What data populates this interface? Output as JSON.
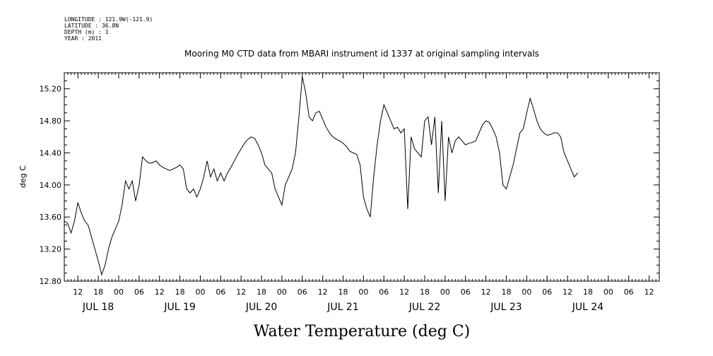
{
  "header": {
    "longitude": "LONGITUDE : 121.9W(-121.9)",
    "latitude": "LATITUDE : 36.8N",
    "depth": "DEPTH (m) : 1",
    "year": "YEAR : 2011"
  },
  "chart_data": {
    "type": "line",
    "title": "Mooring M0 CTD data from MBARI instrument id 1337 at original sampling intervals",
    "xlabel": "Water Temperature (deg C)",
    "ylabel": "deg C",
    "ylim": [
      12.8,
      15.4
    ],
    "xlim": [
      "2011-07-17T08:00",
      "2011-07-24T15:00"
    ],
    "yticks": [
      "12.80",
      "13.20",
      "13.60",
      "14.00",
      "14.40",
      "14.80",
      "15.20"
    ],
    "xticks": [
      {
        "t": "2011-07-17T12:00",
        "label": "12"
      },
      {
        "t": "2011-07-17T18:00",
        "label": "18"
      },
      {
        "t": "2011-07-18T00:00",
        "label": "00"
      },
      {
        "t": "2011-07-18T06:00",
        "label": "06"
      },
      {
        "t": "2011-07-18T12:00",
        "label": "12"
      },
      {
        "t": "2011-07-18T18:00",
        "label": "18"
      },
      {
        "t": "2011-07-19T00:00",
        "label": "00"
      },
      {
        "t": "2011-07-19T06:00",
        "label": "06"
      },
      {
        "t": "2011-07-19T12:00",
        "label": "12"
      },
      {
        "t": "2011-07-19T18:00",
        "label": "18"
      },
      {
        "t": "2011-07-20T00:00",
        "label": "00"
      },
      {
        "t": "2011-07-20T06:00",
        "label": "06"
      },
      {
        "t": "2011-07-20T12:00",
        "label": "12"
      },
      {
        "t": "2011-07-20T18:00",
        "label": "18"
      },
      {
        "t": "2011-07-21T00:00",
        "label": "00"
      },
      {
        "t": "2011-07-21T06:00",
        "label": "06"
      },
      {
        "t": "2011-07-21T12:00",
        "label": "12"
      },
      {
        "t": "2011-07-21T18:00",
        "label": "18"
      },
      {
        "t": "2011-07-22T00:00",
        "label": "00"
      },
      {
        "t": "2011-07-22T06:00",
        "label": "06"
      },
      {
        "t": "2011-07-22T12:00",
        "label": "12"
      },
      {
        "t": "2011-07-22T18:00",
        "label": "18"
      },
      {
        "t": "2011-07-23T00:00",
        "label": "00"
      },
      {
        "t": "2011-07-23T06:00",
        "label": "06"
      },
      {
        "t": "2011-07-23T12:00",
        "label": "12"
      },
      {
        "t": "2011-07-23T18:00",
        "label": "18"
      },
      {
        "t": "2011-07-24T00:00",
        "label": "00"
      },
      {
        "t": "2011-07-24T06:00",
        "label": "06"
      },
      {
        "t": "2011-07-24T12:00",
        "label": "12"
      }
    ],
    "day_labels": [
      {
        "t": "2011-07-17T18:00",
        "label": "JUL 18"
      },
      {
        "t": "2011-07-18T18:00",
        "label": "JUL 19"
      },
      {
        "t": "2011-07-19T18:00",
        "label": "JUL 20"
      },
      {
        "t": "2011-07-20T18:00",
        "label": "JUL 21"
      },
      {
        "t": "2011-07-21T18:00",
        "label": "JUL 22"
      },
      {
        "t": "2011-07-22T18:00",
        "label": "JUL 23"
      },
      {
        "t": "2011-07-23T18:00",
        "label": "JUL 24"
      }
    ],
    "grid": false,
    "series": [
      {
        "color": "#000000",
        "points": [
          [
            "2011-07-17T08:00",
            13.55
          ],
          [
            "2011-07-17T09:00",
            13.52
          ],
          [
            "2011-07-17T10:00",
            13.4
          ],
          [
            "2011-07-17T11:00",
            13.55
          ],
          [
            "2011-07-17T12:00",
            13.78
          ],
          [
            "2011-07-17T13:00",
            13.65
          ],
          [
            "2011-07-17T14:00",
            13.55
          ],
          [
            "2011-07-17T15:00",
            13.5
          ],
          [
            "2011-07-17T16:00",
            13.35
          ],
          [
            "2011-07-17T17:00",
            13.2
          ],
          [
            "2011-07-17T18:00",
            13.05
          ],
          [
            "2011-07-17T19:00",
            12.88
          ],
          [
            "2011-07-17T20:00",
            13.0
          ],
          [
            "2011-07-17T21:00",
            13.2
          ],
          [
            "2011-07-17T22:00",
            13.35
          ],
          [
            "2011-07-17T23:00",
            13.45
          ],
          [
            "2011-07-18T00:00",
            13.55
          ],
          [
            "2011-07-18T01:00",
            13.75
          ],
          [
            "2011-07-18T02:00",
            14.05
          ],
          [
            "2011-07-18T03:00",
            13.95
          ],
          [
            "2011-07-18T04:00",
            14.05
          ],
          [
            "2011-07-18T05:00",
            13.8
          ],
          [
            "2011-07-18T06:00",
            14.0
          ],
          [
            "2011-07-18T07:00",
            14.35
          ],
          [
            "2011-07-18T08:00",
            14.3
          ],
          [
            "2011-07-18T09:00",
            14.27
          ],
          [
            "2011-07-18T10:00",
            14.28
          ],
          [
            "2011-07-18T11:00",
            14.3
          ],
          [
            "2011-07-18T12:00",
            14.25
          ],
          [
            "2011-07-18T13:00",
            14.22
          ],
          [
            "2011-07-18T14:00",
            14.2
          ],
          [
            "2011-07-18T15:00",
            14.18
          ],
          [
            "2011-07-18T16:00",
            14.2
          ],
          [
            "2011-07-18T17:00",
            14.22
          ],
          [
            "2011-07-18T18:00",
            14.25
          ],
          [
            "2011-07-18T19:00",
            14.2
          ],
          [
            "2011-07-18T20:00",
            13.95
          ],
          [
            "2011-07-18T21:00",
            13.9
          ],
          [
            "2011-07-18T22:00",
            13.95
          ],
          [
            "2011-07-18T23:00",
            13.85
          ],
          [
            "2011-07-19T00:00",
            13.95
          ],
          [
            "2011-07-19T01:00",
            14.1
          ],
          [
            "2011-07-19T02:00",
            14.3
          ],
          [
            "2011-07-19T03:00",
            14.1
          ],
          [
            "2011-07-19T04:00",
            14.2
          ],
          [
            "2011-07-19T05:00",
            14.05
          ],
          [
            "2011-07-19T06:00",
            14.15
          ],
          [
            "2011-07-19T07:00",
            14.05
          ],
          [
            "2011-07-19T08:00",
            14.15
          ],
          [
            "2011-07-19T09:00",
            14.22
          ],
          [
            "2011-07-19T10:00",
            14.3
          ],
          [
            "2011-07-19T11:00",
            14.38
          ],
          [
            "2011-07-19T12:00",
            14.45
          ],
          [
            "2011-07-19T13:00",
            14.52
          ],
          [
            "2011-07-19T14:00",
            14.57
          ],
          [
            "2011-07-19T15:00",
            14.6
          ],
          [
            "2011-07-19T16:00",
            14.58
          ],
          [
            "2011-07-19T17:00",
            14.5
          ],
          [
            "2011-07-19T18:00",
            14.4
          ],
          [
            "2011-07-19T19:00",
            14.25
          ],
          [
            "2011-07-19T20:00",
            14.2
          ],
          [
            "2011-07-19T21:00",
            14.15
          ],
          [
            "2011-07-19T22:00",
            13.95
          ],
          [
            "2011-07-19T23:00",
            13.85
          ],
          [
            "2011-07-20T00:00",
            13.75
          ],
          [
            "2011-07-20T01:00",
            14.0
          ],
          [
            "2011-07-20T02:00",
            14.1
          ],
          [
            "2011-07-20T03:00",
            14.2
          ],
          [
            "2011-07-20T04:00",
            14.4
          ],
          [
            "2011-07-20T05:00",
            14.85
          ],
          [
            "2011-07-20T06:00",
            15.35
          ],
          [
            "2011-07-20T07:00",
            15.15
          ],
          [
            "2011-07-20T08:00",
            14.85
          ],
          [
            "2011-07-20T09:00",
            14.8
          ],
          [
            "2011-07-20T10:00",
            14.9
          ],
          [
            "2011-07-20T11:00",
            14.92
          ],
          [
            "2011-07-20T12:00",
            14.82
          ],
          [
            "2011-07-20T13:00",
            14.72
          ],
          [
            "2011-07-20T14:00",
            14.65
          ],
          [
            "2011-07-20T15:00",
            14.6
          ],
          [
            "2011-07-20T16:00",
            14.57
          ],
          [
            "2011-07-20T17:00",
            14.55
          ],
          [
            "2011-07-20T18:00",
            14.52
          ],
          [
            "2011-07-20T19:00",
            14.48
          ],
          [
            "2011-07-20T20:00",
            14.42
          ],
          [
            "2011-07-20T21:00",
            14.4
          ],
          [
            "2011-07-20T22:00",
            14.38
          ],
          [
            "2011-07-20T23:00",
            14.25
          ],
          [
            "2011-07-21T00:00",
            13.85
          ],
          [
            "2011-07-21T01:00",
            13.7
          ],
          [
            "2011-07-21T02:00",
            13.6
          ],
          [
            "2011-07-21T03:00",
            14.1
          ],
          [
            "2011-07-21T04:00",
            14.5
          ],
          [
            "2011-07-21T05:00",
            14.8
          ],
          [
            "2011-07-21T06:00",
            15.0
          ],
          [
            "2011-07-21T07:00",
            14.9
          ],
          [
            "2011-07-21T08:00",
            14.8
          ],
          [
            "2011-07-21T09:00",
            14.7
          ],
          [
            "2011-07-21T10:00",
            14.72
          ],
          [
            "2011-07-21T11:00",
            14.65
          ],
          [
            "2011-07-21T12:00",
            14.7
          ],
          [
            "2011-07-21T13:00",
            13.7
          ],
          [
            "2011-07-21T14:00",
            14.6
          ],
          [
            "2011-07-21T15:00",
            14.45
          ],
          [
            "2011-07-21T16:00",
            14.4
          ],
          [
            "2011-07-21T17:00",
            14.35
          ],
          [
            "2011-07-21T18:00",
            14.8
          ],
          [
            "2011-07-21T19:00",
            14.85
          ],
          [
            "2011-07-21T20:00",
            14.5
          ],
          [
            "2011-07-21T21:00",
            14.85
          ],
          [
            "2011-07-21T22:00",
            13.9
          ],
          [
            "2011-07-21T23:00",
            14.8
          ],
          [
            "2011-07-22T00:00",
            13.8
          ],
          [
            "2011-07-22T01:00",
            14.6
          ],
          [
            "2011-07-22T02:00",
            14.4
          ],
          [
            "2011-07-22T03:00",
            14.55
          ],
          [
            "2011-07-22T04:00",
            14.6
          ],
          [
            "2011-07-22T05:00",
            14.55
          ],
          [
            "2011-07-22T06:00",
            14.5
          ],
          [
            "2011-07-22T07:00",
            14.52
          ],
          [
            "2011-07-22T08:00",
            14.53
          ],
          [
            "2011-07-22T09:00",
            14.55
          ],
          [
            "2011-07-22T10:00",
            14.65
          ],
          [
            "2011-07-22T11:00",
            14.75
          ],
          [
            "2011-07-22T12:00",
            14.8
          ],
          [
            "2011-07-22T13:00",
            14.78
          ],
          [
            "2011-07-22T14:00",
            14.7
          ],
          [
            "2011-07-22T15:00",
            14.6
          ],
          [
            "2011-07-22T16:00",
            14.4
          ],
          [
            "2011-07-22T17:00",
            14.0
          ],
          [
            "2011-07-22T18:00",
            13.95
          ],
          [
            "2011-07-22T19:00",
            14.1
          ],
          [
            "2011-07-22T20:00",
            14.25
          ],
          [
            "2011-07-22T21:00",
            14.45
          ],
          [
            "2011-07-22T22:00",
            14.65
          ],
          [
            "2011-07-22T23:00",
            14.7
          ],
          [
            "2011-07-23T00:00",
            14.9
          ],
          [
            "2011-07-23T01:00",
            15.08
          ],
          [
            "2011-07-23T02:00",
            14.95
          ],
          [
            "2011-07-23T03:00",
            14.8
          ],
          [
            "2011-07-23T04:00",
            14.7
          ],
          [
            "2011-07-23T05:00",
            14.65
          ],
          [
            "2011-07-23T06:00",
            14.62
          ],
          [
            "2011-07-23T07:00",
            14.63
          ],
          [
            "2011-07-23T08:00",
            14.65
          ],
          [
            "2011-07-23T09:00",
            14.65
          ],
          [
            "2011-07-23T10:00",
            14.6
          ],
          [
            "2011-07-23T11:00",
            14.4
          ],
          [
            "2011-07-23T12:00",
            14.3
          ],
          [
            "2011-07-23T13:00",
            14.2
          ],
          [
            "2011-07-23T14:00",
            14.1
          ],
          [
            "2011-07-23T15:00",
            14.15
          ]
        ]
      }
    ]
  }
}
